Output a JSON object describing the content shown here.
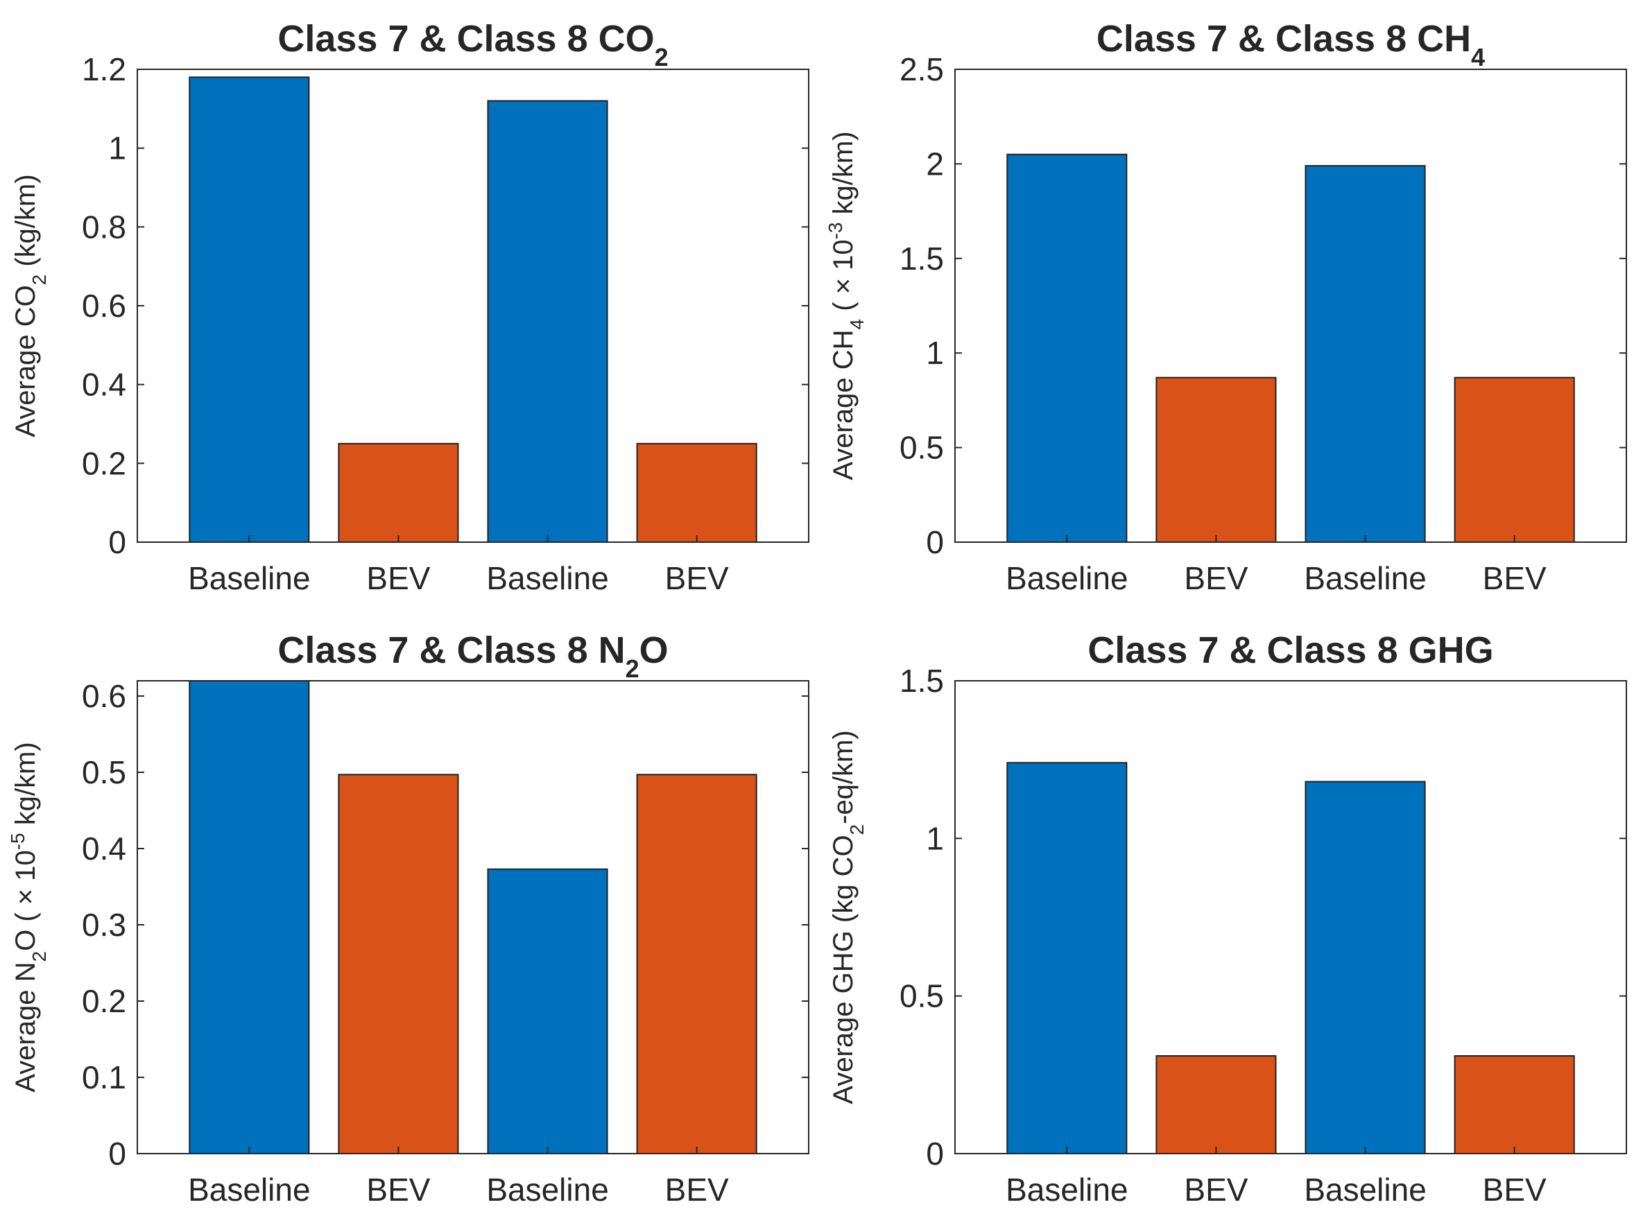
{
  "colors": {
    "baseline": "#0072BD",
    "bev": "#D95319",
    "axis": "#262626"
  },
  "chart_data": [
    {
      "type": "bar",
      "title": "Class 7 & Class 8 CO",
      "title_sub": "2",
      "ylabel": "Average CO",
      "ylabel_sub": "2",
      "ylabel_sup": "",
      "ylabel_rest": " (kg/km)",
      "categories": [
        "Baseline",
        "BEV",
        "Baseline",
        "BEV"
      ],
      "values": [
        1.18,
        0.25,
        1.12,
        0.25
      ],
      "ylim": [
        0,
        1.2
      ],
      "yticks": [
        0,
        0.2,
        0.4,
        0.6,
        0.8,
        1,
        1.2
      ],
      "ytick_labels": [
        "0",
        "0.2",
        "0.4",
        "0.6",
        "0.8",
        "1",
        "1.2"
      ]
    },
    {
      "type": "bar",
      "title": "Class 7 & Class 8 CH",
      "title_sub": "4",
      "ylabel": "Average CH",
      "ylabel_sub": "4",
      "ylabel_mid": " ( × 10",
      "ylabel_sup": "-3",
      "ylabel_rest": "  kg/km)",
      "categories": [
        "Baseline",
        "BEV",
        "Baseline",
        "BEV"
      ],
      "values": [
        2.05,
        0.87,
        1.99,
        0.87
      ],
      "ylim": [
        0,
        2.5
      ],
      "yticks": [
        0,
        0.5,
        1,
        1.5,
        2,
        2.5
      ],
      "ytick_labels": [
        "0",
        "0.5",
        "1",
        "1.5",
        "2",
        "2.5"
      ]
    },
    {
      "type": "bar",
      "title": "Class 7 & Class 8 N",
      "title_sub": "2",
      "title_rest": "O",
      "ylabel": "Average N",
      "ylabel_sub": "2",
      "ylabel_mid": "O ( × 10",
      "ylabel_sup": "-5",
      "ylabel_rest": "  kg/km)",
      "categories": [
        "Baseline",
        "BEV",
        "Baseline",
        "BEV"
      ],
      "values": [
        0.62,
        0.497,
        0.373,
        0.497
      ],
      "ylim": [
        0,
        0.62
      ],
      "yticks": [
        0,
        0.1,
        0.2,
        0.3,
        0.4,
        0.5,
        0.6
      ],
      "ytick_labels": [
        "0",
        "0.1",
        "0.2",
        "0.3",
        "0.4",
        "0.5",
        "0.6"
      ]
    },
    {
      "type": "bar",
      "title": "Class 7 & Class 8 GHG",
      "title_sub": "",
      "ylabel": "Average GHG (kg CO",
      "ylabel_sub": "2",
      "ylabel_sup": "",
      "ylabel_rest": "-eq/km)",
      "categories": [
        "Baseline",
        "BEV",
        "Baseline",
        "BEV"
      ],
      "values": [
        1.24,
        0.31,
        1.18,
        0.31
      ],
      "ylim": [
        0,
        1.5
      ],
      "yticks": [
        0,
        0.5,
        1,
        1.5
      ],
      "ytick_labels": [
        "0",
        "0.5",
        "1",
        "1.5"
      ]
    }
  ]
}
